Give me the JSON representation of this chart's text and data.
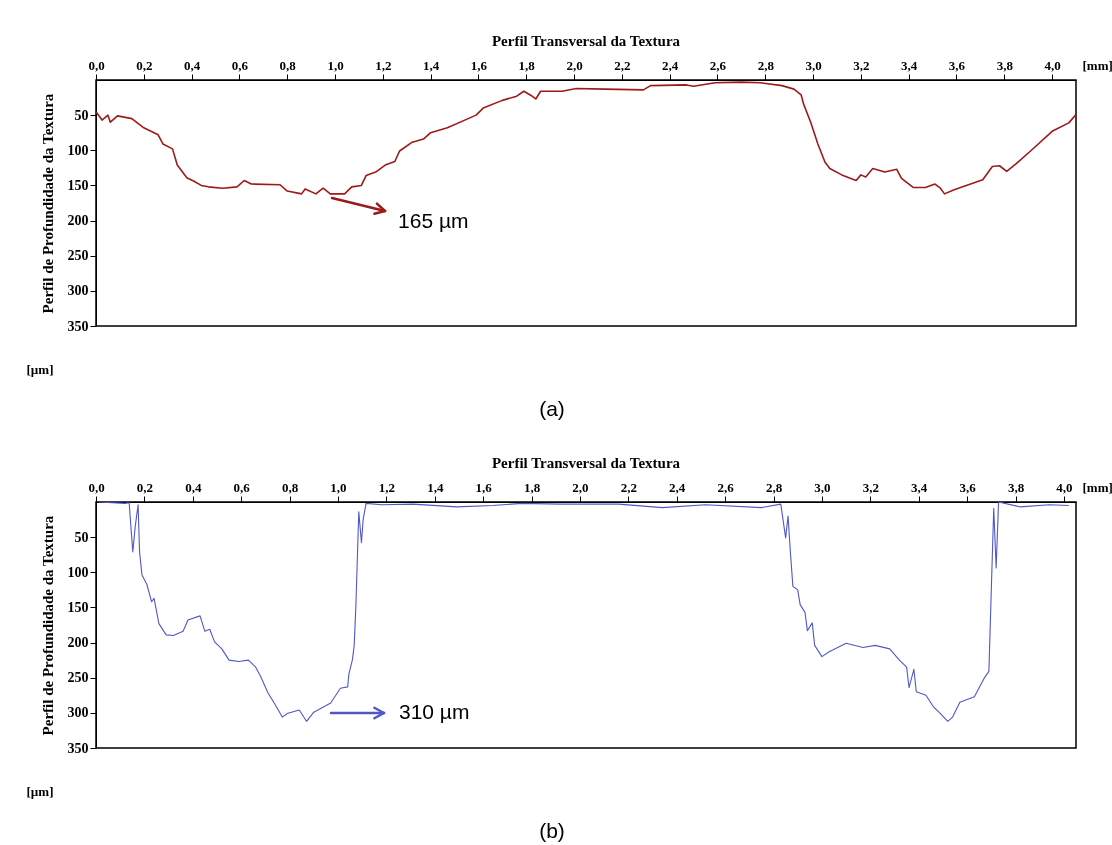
{
  "chart_data": [
    {
      "type": "line",
      "title": "Perfil Transversal da Textura",
      "xlabel": "[mm]",
      "ylabel": "Perfil de Profundidade da Textura",
      "xlim": [
        0,
        4.1
      ],
      "ylim": [
        350,
        0
      ],
      "xticks": [
        {
          "value": 0,
          "label": "0,0"
        },
        {
          "value": 0.2,
          "label": "0,2"
        },
        {
          "value": 0.4,
          "label": "0,4"
        },
        {
          "value": 0.6,
          "label": "0,6"
        },
        {
          "value": 0.8,
          "label": "0,8"
        },
        {
          "value": 1.0,
          "label": "1,0"
        },
        {
          "value": 1.2,
          "label": "1,2"
        },
        {
          "value": 1.4,
          "label": "1,4"
        },
        {
          "value": 1.6,
          "label": "1,6"
        },
        {
          "value": 1.8,
          "label": "1,8"
        },
        {
          "value": 2.0,
          "label": "2,0"
        },
        {
          "value": 2.2,
          "label": "2,2"
        },
        {
          "value": 2.4,
          "label": "2,4"
        },
        {
          "value": 2.6,
          "label": "2,6"
        },
        {
          "value": 2.8,
          "label": "2,8"
        },
        {
          "value": 3.0,
          "label": "3,0"
        },
        {
          "value": 3.2,
          "label": "3,2"
        },
        {
          "value": 3.4,
          "label": "3,4"
        },
        {
          "value": 3.6,
          "label": "3,6"
        },
        {
          "value": 3.8,
          "label": "3,8"
        },
        {
          "value": 4.0,
          "label": "4,0"
        }
      ],
      "yticks": [
        50,
        100,
        150,
        200,
        250,
        300,
        350
      ],
      "grid": false,
      "marker": "none",
      "line_style": "solid",
      "series": [
        {
          "color": "#9e1a1a",
          "x": [
            0,
            0.025,
            0.05,
            0.06,
            0.09,
            0.15,
            0.2,
            0.26,
            0.28,
            0.32,
            0.34,
            0.38,
            0.41,
            0.44,
            0.47,
            0.53,
            0.59,
            0.62,
            0.65,
            0.77,
            0.8,
            0.86,
            0.875,
            0.92,
            0.95,
            0.98,
            1.04,
            1.07,
            1.11,
            1.13,
            1.17,
            1.21,
            1.25,
            1.27,
            1.32,
            1.37,
            1.4,
            1.47,
            1.55,
            1.59,
            1.62,
            1.7,
            1.76,
            1.79,
            1.82,
            1.84,
            1.86,
            1.95,
            2.01,
            2.13,
            2.29,
            2.32,
            2.47,
            2.5,
            2.59,
            2.7,
            2.78,
            2.87,
            2.92,
            2.95,
            2.96,
            2.99,
            3.02,
            3.05,
            3.07,
            3.12,
            3.18,
            3.2,
            3.22,
            3.25,
            3.3,
            3.35,
            3.37,
            3.42,
            3.47,
            3.51,
            3.53,
            3.55,
            3.59,
            3.65,
            3.71,
            3.75,
            3.78,
            3.81,
            3.85,
            3.91,
            4.0,
            4.07,
            4.1
          ],
          "values": [
            45,
            57,
            50,
            60,
            51,
            55,
            68,
            78,
            91,
            98,
            121,
            139,
            144,
            150,
            152,
            154,
            152,
            143,
            148,
            149,
            158,
            162,
            155,
            162,
            154,
            162,
            162,
            152,
            150,
            136,
            131,
            121,
            116,
            101,
            89,
            84,
            75,
            68,
            56,
            50,
            40,
            29,
            23,
            16,
            22,
            27,
            16,
            16,
            12,
            13,
            14,
            8,
            7,
            9,
            4,
            3,
            4,
            8,
            13,
            21,
            34,
            60,
            91,
            117,
            126,
            135,
            143,
            135,
            138,
            126,
            131,
            127,
            140,
            153,
            153,
            148,
            153,
            162,
            156,
            149,
            142,
            123,
            122,
            130,
            119,
            101,
            73,
            61,
            49
          ]
        }
      ],
      "annotations": [
        {
          "text": "165 µm",
          "x": 1.0,
          "y": 165
        },
        "[µm]",
        "(a)"
      ]
    },
    {
      "type": "line",
      "title": "Perfil Transversal da Textura",
      "xlabel": "[mm]",
      "ylabel": "Perfil de Profundidade da Textura",
      "xlim": [
        0,
        4.05
      ],
      "ylim": [
        350,
        0
      ],
      "xticks": [
        {
          "value": 0,
          "label": "0,0"
        },
        {
          "value": 0.2,
          "label": "0,2"
        },
        {
          "value": 0.4,
          "label": "0,4"
        },
        {
          "value": 0.6,
          "label": "0,6"
        },
        {
          "value": 0.8,
          "label": "0,8"
        },
        {
          "value": 1.0,
          "label": "1,0"
        },
        {
          "value": 1.2,
          "label": "1,2"
        },
        {
          "value": 1.4,
          "label": "1,4"
        },
        {
          "value": 1.6,
          "label": "1,6"
        },
        {
          "value": 1.8,
          "label": "1,8"
        },
        {
          "value": 2.0,
          "label": "2,0"
        },
        {
          "value": 2.2,
          "label": "2,2"
        },
        {
          "value": 2.4,
          "label": "2,4"
        },
        {
          "value": 2.6,
          "label": "2,6"
        },
        {
          "value": 2.8,
          "label": "2,8"
        },
        {
          "value": 3.0,
          "label": "3,0"
        },
        {
          "value": 3.2,
          "label": "3,2"
        },
        {
          "value": 3.4,
          "label": "3,4"
        },
        {
          "value": 3.6,
          "label": "3,6"
        },
        {
          "value": 3.8,
          "label": "3,8"
        },
        {
          "value": 4.0,
          "label": "4,0"
        }
      ],
      "yticks": [
        50,
        100,
        150,
        200,
        250,
        300,
        350
      ],
      "grid": false,
      "marker": "none",
      "line_style": "solid",
      "series": [
        {
          "color": "#5058c8",
          "x": [
            0.01,
            0.12,
            0.137,
            0.152,
            0.162,
            0.174,
            0.18,
            0.19,
            0.21,
            0.23,
            0.24,
            0.26,
            0.29,
            0.32,
            0.36,
            0.38,
            0.43,
            0.45,
            0.47,
            0.49,
            0.52,
            0.55,
            0.59,
            0.63,
            0.66,
            0.68,
            0.71,
            0.74,
            0.77,
            0.79,
            0.84,
            0.87,
            0.9,
            0.97,
            1.01,
            1.04,
            1.045,
            1.06,
            1.067,
            1.074,
            1.086,
            1.097,
            1.104,
            1.116,
            1.18,
            1.31,
            1.49,
            1.64,
            1.76,
            1.92,
            2.0,
            2.16,
            2.34,
            2.52,
            2.75,
            2.83,
            2.85,
            2.86,
            2.87,
            2.88,
            2.9,
            2.91,
            2.93,
            2.94,
            2.96,
            2.97,
            3.0,
            3.03,
            3.1,
            3.17,
            3.22,
            3.28,
            3.32,
            3.35,
            3.36,
            3.38,
            3.39,
            3.43,
            3.46,
            3.49,
            3.52,
            3.54,
            3.57,
            3.63,
            3.67,
            3.69,
            3.7,
            3.71,
            3.72,
            3.73,
            3.82,
            3.94,
            4.02
          ],
          "values": [
            0,
            2,
            1,
            71,
            35,
            4,
            71,
            104,
            117,
            142,
            137,
            173,
            189,
            190,
            184,
            168,
            162,
            184,
            181,
            199,
            209,
            225,
            227,
            225,
            235,
            248,
            271,
            288,
            306,
            301,
            296,
            312,
            299,
            286,
            265,
            263,
            245,
            224,
            204,
            148,
            14,
            58,
            25,
            2,
            4,
            3,
            7,
            5,
            2,
            3,
            3,
            3,
            8,
            4,
            8,
            3,
            51,
            20,
            73,
            120,
            125,
            146,
            157,
            183,
            172,
            204,
            220,
            213,
            201,
            207,
            204,
            209,
            225,
            235,
            264,
            238,
            270,
            275,
            291,
            301,
            312,
            306,
            285,
            277,
            251,
            241,
            125,
            9,
            94,
            0,
            7,
            4,
            5
          ]
        }
      ],
      "annotations": [
        "310 µm",
        "[µm]",
        "(b)"
      ]
    }
  ]
}
